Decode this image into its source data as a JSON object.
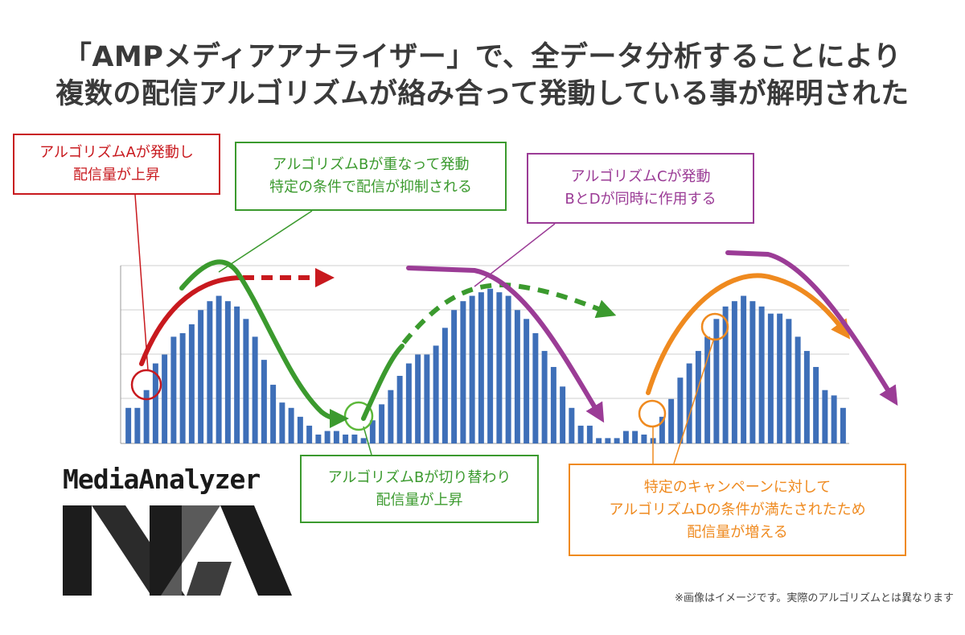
{
  "header": {
    "title_line1": "「AMPメディアアナライザー」で、全データ分析することにより",
    "title_line2": "複数の配信アルゴリズムが絡み合って発動している事が解明された"
  },
  "annotations": {
    "a": {
      "line1": "アルゴリズムAが発動し",
      "line2": "配信量が上昇",
      "color": "#c8191e"
    },
    "b": {
      "line1": "アルゴリズムBが重なって発動",
      "line2": "特定の条件で配信が抑制される",
      "color": "#3b9a2e"
    },
    "c": {
      "line1": "アルゴリズムCが発動",
      "line2": "BとDが同時に作用する",
      "color": "#9b3c96"
    },
    "b2": {
      "line1": "アルゴリズムBが切り替わり",
      "line2": "配信量が上昇",
      "color": "#3b9a2e"
    },
    "d": {
      "line1": "特定のキャンペーンに対して",
      "line2": "アルゴリズムDの条件が満たされたため",
      "line3": "配信量が増える",
      "color": "#ef8a1f"
    }
  },
  "logo": {
    "text": "MediaAnalyzer"
  },
  "footnote": "※画像はイメージです。実際のアルゴリズムとは異なります",
  "chart_data": {
    "type": "bar",
    "title": "",
    "xlabel": "",
    "ylabel": "",
    "ylim": [
      0,
      100
    ],
    "grid": true,
    "bar_color": "#3e6fb8",
    "values": [
      20,
      20,
      30,
      45,
      50,
      60,
      62,
      67,
      75,
      80,
      83,
      80,
      77,
      70,
      60,
      47,
      33,
      23,
      20,
      15,
      10,
      5,
      7,
      7,
      5,
      5,
      3,
      13,
      22,
      30,
      38,
      45,
      50,
      50,
      55,
      65,
      75,
      80,
      83,
      85,
      87,
      85,
      83,
      75,
      70,
      62,
      52,
      43,
      32,
      20,
      10,
      10,
      3,
      3,
      3,
      7,
      7,
      5,
      3,
      15,
      25,
      37,
      45,
      52,
      60,
      70,
      77,
      80,
      83,
      80,
      77,
      73,
      73,
      70,
      60,
      52,
      43,
      30,
      27,
      20
    ]
  }
}
